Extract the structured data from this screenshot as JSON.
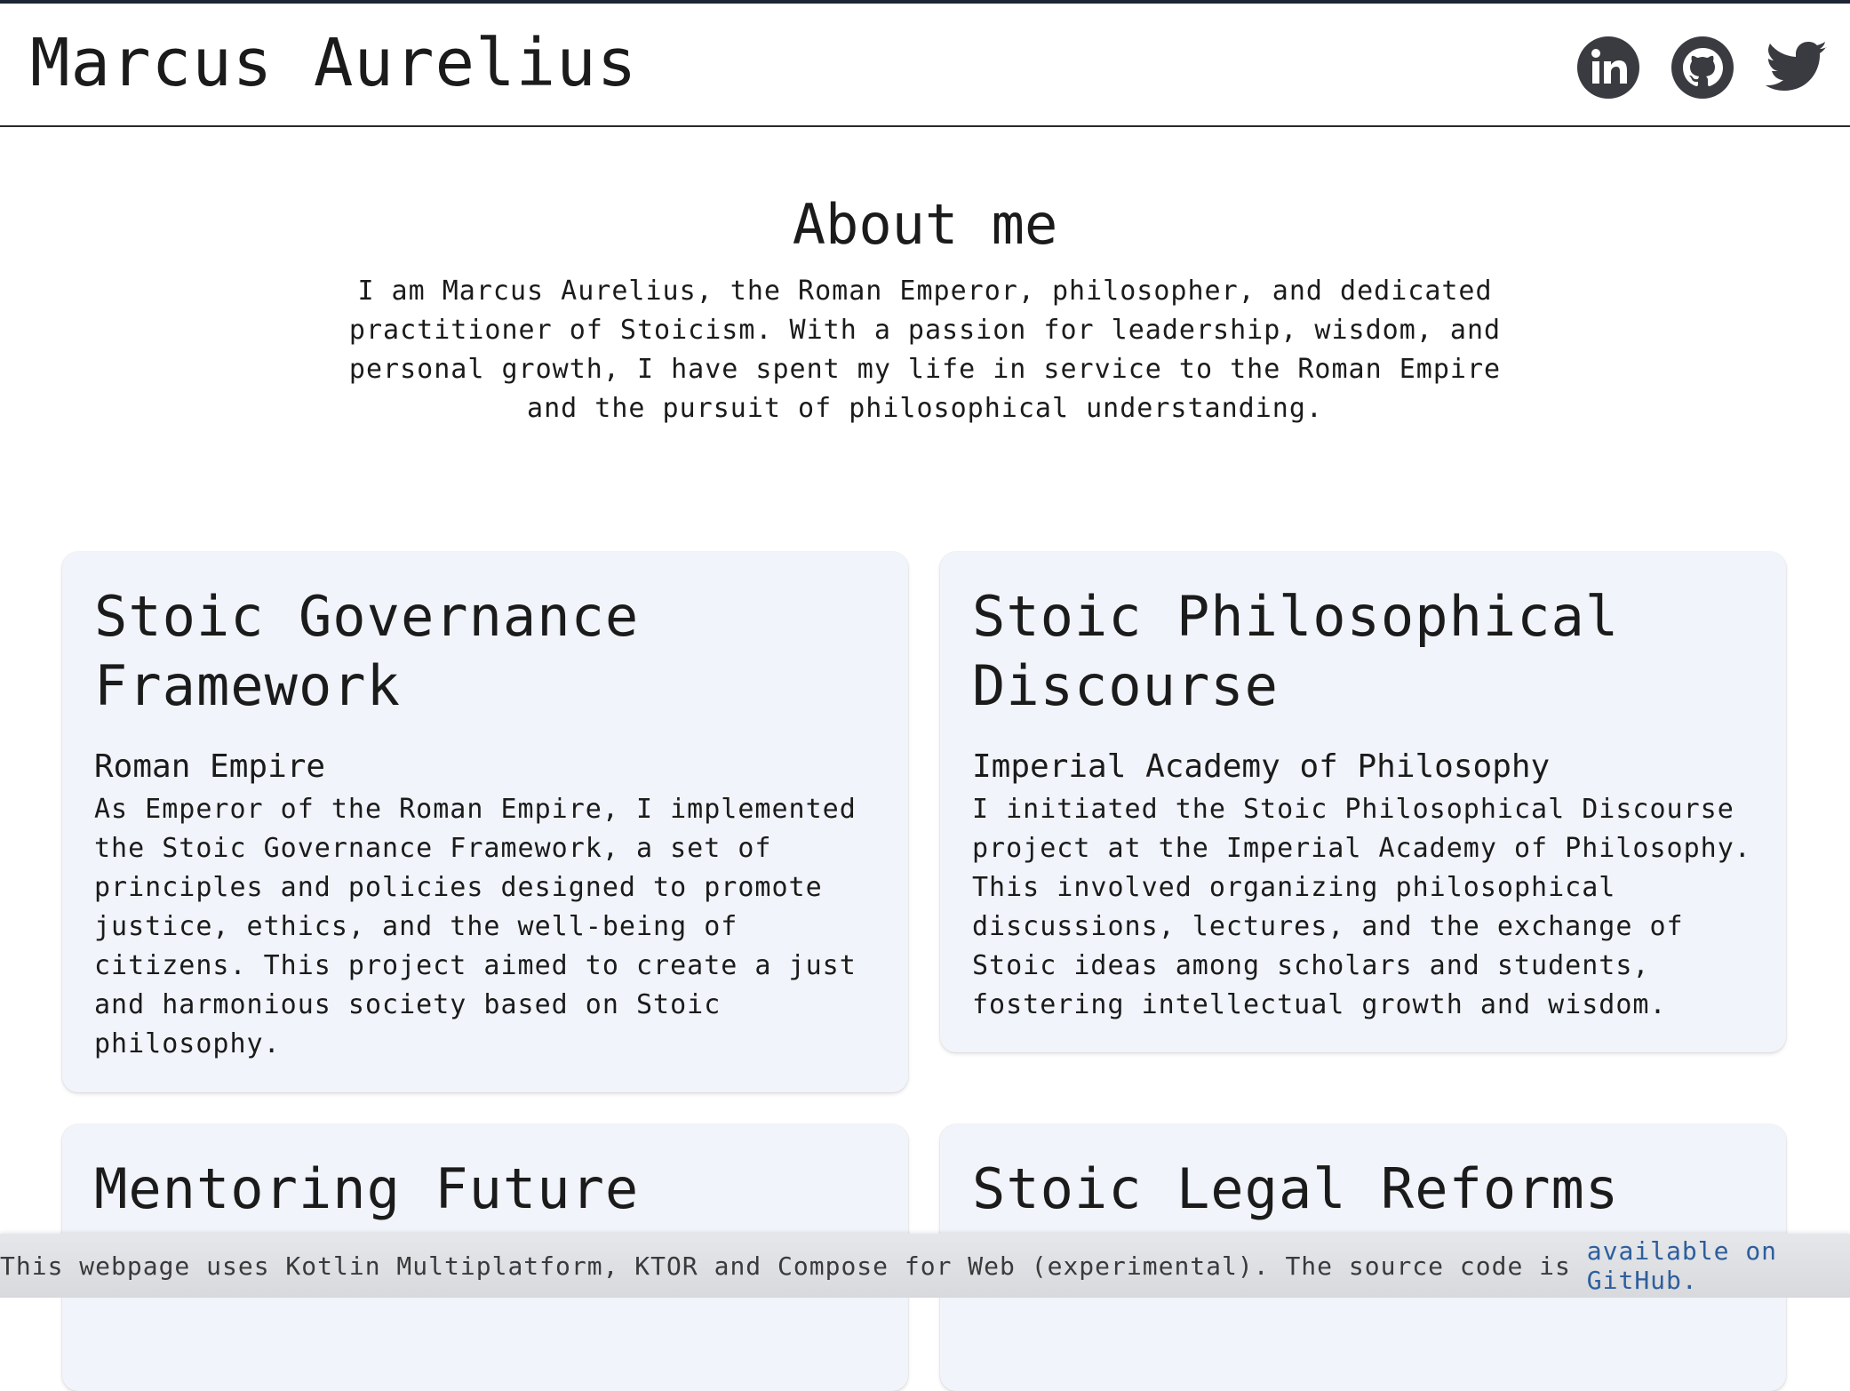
{
  "header": {
    "title": "Marcus Aurelius",
    "social_icons": [
      "linkedin-icon",
      "github-icon",
      "twitter-icon"
    ],
    "icon_color": "#3a3b40"
  },
  "about": {
    "title": "About me",
    "text": "I am Marcus Aurelius, the Roman Emperor, philosopher, and dedicated practitioner of Stoicism. With a passion for leadership, wisdom, and personal growth, I have spent my life in service to the Roman Empire and the pursuit of philosophical understanding."
  },
  "projects": [
    {
      "title": "Stoic Governance Framework",
      "organization": "Roman Empire",
      "description": "As Emperor of the Roman Empire, I implemented the Stoic Governance Framework, a set of principles and policies designed to promote justice, ethics, and the well-being of citizens. This project aimed to create a just and harmonious society based on Stoic philosophy."
    },
    {
      "title": "Stoic Philosophical Discourse",
      "organization": "Imperial Academy of Philosophy",
      "description": "I initiated the Stoic Philosophical Discourse project at the Imperial Academy of Philosophy. This involved organizing philosophical discussions, lectures, and the exchange of Stoic ideas among scholars and students, fostering intellectual growth and wisdom."
    },
    {
      "title": "Mentoring Future",
      "organization": "",
      "description": ""
    },
    {
      "title": "Stoic Legal Reforms",
      "organization": "",
      "description": ""
    }
  ],
  "footer": {
    "text": "This webpage uses Kotlin Multiplatform, KTOR and Compose for Web (experimental). The source code is ",
    "link_text": "available on GitHub."
  },
  "colors": {
    "card_background": "#f1f4fa",
    "link": "#2d5e9c",
    "header_rule": "#2a2a2a"
  }
}
